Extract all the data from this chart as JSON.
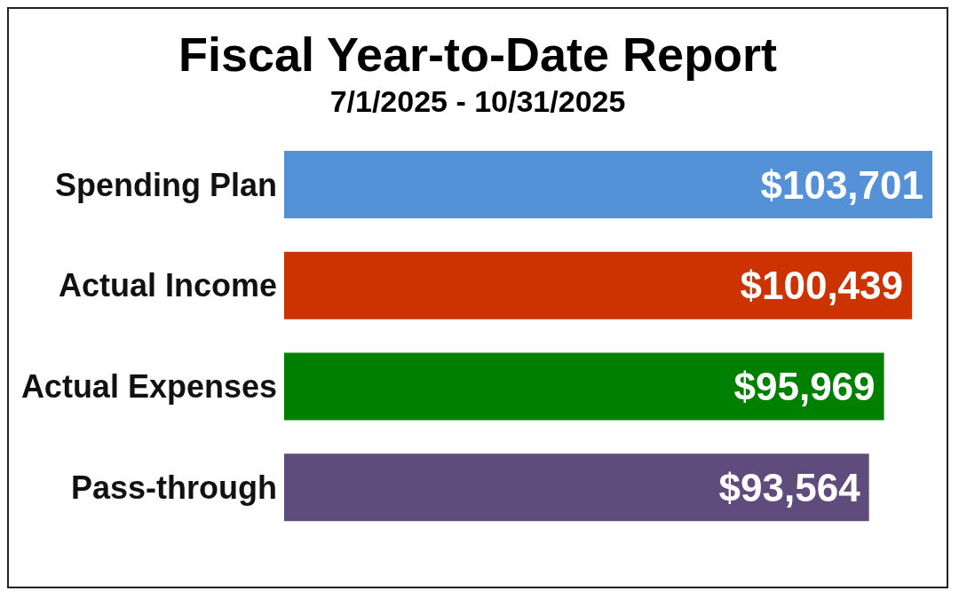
{
  "chart_data": {
    "type": "bar",
    "orientation": "horizontal",
    "title": "Fiscal Year-to-Date Report",
    "subtitle": "7/1/2025 - 10/31/2025",
    "categories": [
      "Spending Plan",
      "Actual Income",
      "Actual Expenses",
      "Pass-through"
    ],
    "values": [
      103701,
      100439,
      95969,
      93564
    ],
    "colors": [
      "#5591d6",
      "#cc3300",
      "#008000",
      "#604c7c"
    ],
    "value_labels": [
      "$103,701",
      "$100,439",
      "$95,969",
      "$93,564"
    ],
    "grid": false,
    "legend": false
  }
}
